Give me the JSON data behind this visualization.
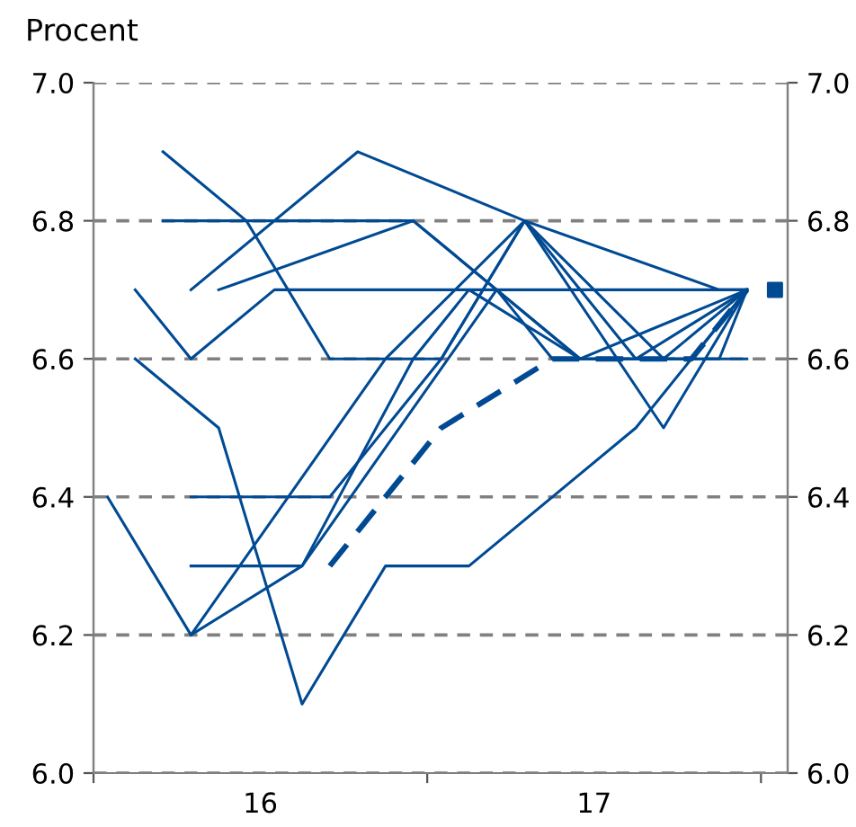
{
  "chart_data": {
    "type": "line",
    "ylabel": "Procent",
    "xlim": [
      15.5,
      17.58
    ],
    "xticks": [
      {
        "value": 15.5,
        "label": null
      },
      16,
      {
        "value": 16.5,
        "label": null
      },
      17,
      {
        "value": 17.5,
        "label": null
      }
    ],
    "ylim": [
      6.0,
      7.0
    ],
    "yticks": [
      {
        "value": 6.0,
        "label": "6.0"
      },
      {
        "value": 6.2,
        "label": "6.2"
      },
      {
        "value": 6.4,
        "label": "6.4"
      },
      {
        "value": 6.6,
        "label": "6.6"
      },
      {
        "value": 6.8,
        "label": "6.8"
      },
      {
        "value": 7.0,
        "label": "7.0"
      }
    ],
    "y2lim": [
      6.0,
      7.0
    ],
    "y2ticks": [
      {
        "value": 6.0,
        "label": "6.0"
      },
      {
        "value": 6.2,
        "label": "6.2"
      },
      {
        "value": 6.4,
        "label": "6.4"
      },
      {
        "value": 6.6,
        "label": "6.6"
      },
      {
        "value": 6.8,
        "label": "6.8"
      },
      {
        "value": 7.0,
        "label": "7.0"
      }
    ],
    "grid": "y",
    "legend": false,
    "marker": "none",
    "line_style": "solid",
    "series": [
      {
        "color": "#004a93",
        "x": [
          15.708,
          16.458,
          16.958,
          17.375,
          17.458
        ],
        "values": [
          6.8,
          6.8,
          6.6,
          6.6,
          6.7
        ]
      },
      {
        "color": "#004a93",
        "x": [
          15.792,
          16.125,
          16.708,
          16.958,
          17.292,
          17.458
        ],
        "values": [
          6.3,
          6.3,
          6.7,
          6.6,
          6.6,
          6.7
        ]
      },
      {
        "color": "#004a93",
        "line_style": "dashed",
        "x": [
          16.208,
          16.542,
          16.875,
          17.292,
          17.458
        ],
        "values": [
          6.3,
          6.5,
          6.6,
          6.6,
          6.7
        ]
      },
      {
        "color": "#004a93",
        "x": [
          15.625,
          15.792,
          16.042,
          17.458
        ],
        "values": [
          6.7,
          6.6,
          6.7,
          6.7
        ]
      },
      {
        "color": "#004a93",
        "x": [
          15.792,
          16.292,
          16.792,
          17.375,
          17.458
        ],
        "values": [
          6.7,
          6.9,
          6.8,
          6.7,
          6.7
        ]
      },
      {
        "color": "#004a93",
        "x": [
          15.875,
          16.458,
          16.708,
          16.875,
          17.458
        ],
        "values": [
          6.7,
          6.8,
          6.7,
          6.6,
          6.6
        ]
      },
      {
        "color": "#004a93",
        "x": [
          15.708,
          15.958,
          16.208,
          16.542,
          16.792,
          17.125,
          17.458
        ],
        "values": [
          6.9,
          6.8,
          6.6,
          6.6,
          6.8,
          6.6,
          6.7
        ]
      },
      {
        "color": "#004a93",
        "x": [
          15.542,
          15.792,
          16.375,
          16.792,
          17.208,
          17.458
        ],
        "values": [
          6.4,
          6.2,
          6.6,
          6.8,
          6.5,
          6.7
        ]
      },
      {
        "color": "#004a93",
        "x": [
          15.625,
          15.875,
          16.125,
          16.375,
          16.625,
          17.125,
          17.458
        ],
        "values": [
          6.6,
          6.5,
          6.1,
          6.3,
          6.3,
          6.5,
          6.7
        ]
      },
      {
        "color": "#004a93",
        "x": [
          15.792,
          16.125,
          16.458,
          16.625,
          16.958,
          17.458
        ],
        "values": [
          6.2,
          6.3,
          6.6,
          6.7,
          6.6,
          6.7
        ]
      },
      {
        "color": "#004a93",
        "x": [
          15.792,
          16.208,
          16.542,
          16.792,
          17.208,
          17.458
        ],
        "values": [
          6.4,
          6.4,
          6.6,
          6.8,
          6.6,
          6.7
        ]
      },
      {
        "type": "scatter",
        "marker": "square",
        "color": "#004a93",
        "x": [
          17.542
        ],
        "values": [
          6.7
        ]
      }
    ]
  }
}
